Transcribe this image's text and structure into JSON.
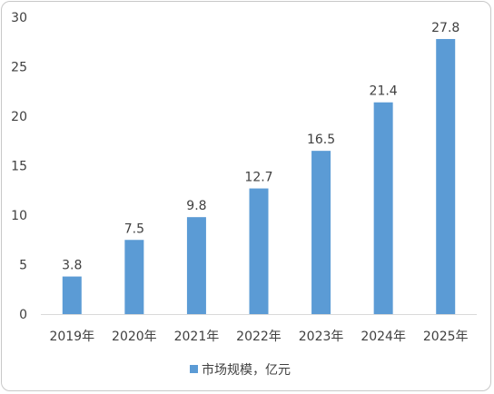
{
  "chart_data": {
    "type": "bar",
    "categories": [
      "2019年",
      "2020年",
      "2021年",
      "2022年",
      "2023年",
      "2024年",
      "2025年"
    ],
    "series": [
      {
        "name": "市场规模，亿元",
        "values": [
          3.8,
          7.5,
          9.8,
          12.7,
          16.5,
          21.4,
          27.8
        ],
        "data_labels": [
          "3.8",
          "7.5",
          "9.8",
          "12.7",
          "16.5",
          "21.4",
          "27.8"
        ],
        "color": "#5b9bd5"
      }
    ],
    "y_ticks": [
      "0",
      "5",
      "10",
      "15",
      "20",
      "25",
      "30"
    ],
    "ylim": [
      0,
      30
    ],
    "grid": false,
    "legend_position": "bottom"
  }
}
